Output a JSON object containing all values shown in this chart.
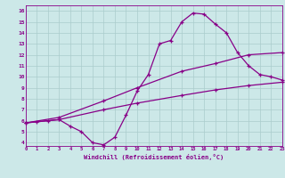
{
  "line1_x": [
    0,
    1,
    2,
    3,
    4,
    5,
    6,
    7,
    8,
    9,
    10,
    11,
    12,
    13,
    14,
    15,
    16,
    17,
    18,
    19,
    20,
    21,
    22,
    23
  ],
  "line1_y": [
    5.8,
    5.9,
    6.0,
    6.1,
    5.5,
    5.0,
    4.0,
    3.8,
    4.5,
    6.5,
    8.7,
    10.2,
    13.0,
    13.3,
    15.0,
    15.8,
    15.7,
    14.8,
    14.0,
    12.2,
    11.0,
    10.2,
    10.0,
    9.7
  ],
  "line2_x": [
    0,
    3,
    7,
    10,
    14,
    17,
    20,
    23
  ],
  "line2_y": [
    5.8,
    6.3,
    7.8,
    9.0,
    10.5,
    11.2,
    12.0,
    12.2
  ],
  "line3_x": [
    0,
    3,
    7,
    10,
    14,
    17,
    20,
    23
  ],
  "line3_y": [
    5.8,
    6.1,
    7.0,
    7.6,
    8.3,
    8.8,
    9.2,
    9.5
  ],
  "color": "#880088",
  "bg_color": "#cce8e8",
  "grid_color": "#aacccc",
  "xlabel": "Windchill (Refroidissement éolien,°C)",
  "xlim": [
    0,
    23
  ],
  "ylim": [
    3.7,
    16.5
  ],
  "xticks": [
    0,
    1,
    2,
    3,
    4,
    5,
    6,
    7,
    8,
    9,
    10,
    11,
    12,
    13,
    14,
    15,
    16,
    17,
    18,
    19,
    20,
    21,
    22,
    23
  ],
  "yticks": [
    4,
    5,
    6,
    7,
    8,
    9,
    10,
    11,
    12,
    13,
    14,
    15,
    16
  ],
  "marker": "+"
}
